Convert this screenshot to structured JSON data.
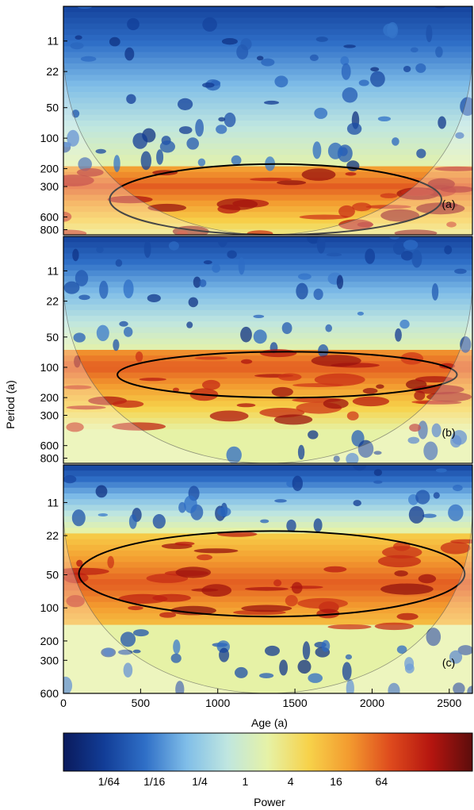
{
  "chart_data": {
    "type": "heatmap",
    "description_kind": "wavelet power spectra, three stacked panels sharing one age axis and one power colorbar",
    "xlabel": "Age (a)",
    "ylabel": "Period (a)",
    "xlim": [
      0,
      2650
    ],
    "x_ticks": [
      0,
      500,
      1000,
      1500,
      2000,
      2500
    ],
    "y_scale": "log",
    "grid": false,
    "colorbar": {
      "label": "Power",
      "orientation": "horizontal",
      "placement": "bottom",
      "scale": "log2",
      "range": [
        0.0039,
        1024
      ],
      "tick_values": [
        0.015625,
        0.0625,
        0.25,
        1,
        4,
        16,
        64
      ],
      "tick_labels": [
        "1/64",
        "1/16",
        "1/4",
        "1",
        "4",
        "16",
        "64"
      ],
      "colors": [
        "#0a1a5c",
        "#123d97",
        "#2f6fc7",
        "#7fbde8",
        "#bfe6e0",
        "#e6f2a6",
        "#f7d24a",
        "#f39a2f",
        "#de4a1d",
        "#b4150f",
        "#5c0d0c"
      ]
    },
    "panels": [
      {
        "label": "(a)",
        "y_ticks": [
          11,
          22,
          50,
          100,
          200,
          300,
          600,
          800
        ],
        "ylim": [
          5,
          900
        ],
        "high_power_band": {
          "period_range": [
            200,
            900
          ],
          "age_range": [
            200,
            2500
          ],
          "peak_period": 300,
          "peak_power": 64
        },
        "significant_regions": [
          {
            "age_range": [
              300,
              2450
            ],
            "period_range": [
              180,
              900
            ]
          }
        ]
      },
      {
        "label": "(b)",
        "y_ticks": [
          11,
          22,
          50,
          100,
          200,
          300,
          600,
          800
        ],
        "ylim": [
          5,
          900
        ],
        "high_power_band": {
          "period_range": [
            70,
            400
          ],
          "age_range": [
            150,
            2550
          ],
          "peak_period": 100,
          "peak_power": 64
        },
        "significant_regions": [
          {
            "age_range": [
              350,
              2550
            ],
            "period_range": [
              70,
              200
            ]
          }
        ]
      },
      {
        "label": "(c)",
        "y_ticks": [
          11,
          22,
          50,
          100,
          200,
          300,
          600
        ],
        "ylim": [
          5,
          600
        ],
        "high_power_band": {
          "period_range": [
            20,
            150
          ],
          "age_range": [
            0,
            2650
          ],
          "peak_period": 60,
          "peak_power": 64
        },
        "significant_regions": [
          {
            "age_range": [
              100,
              2600
            ],
            "period_range": [
              20,
              120
            ]
          }
        ]
      }
    ]
  }
}
